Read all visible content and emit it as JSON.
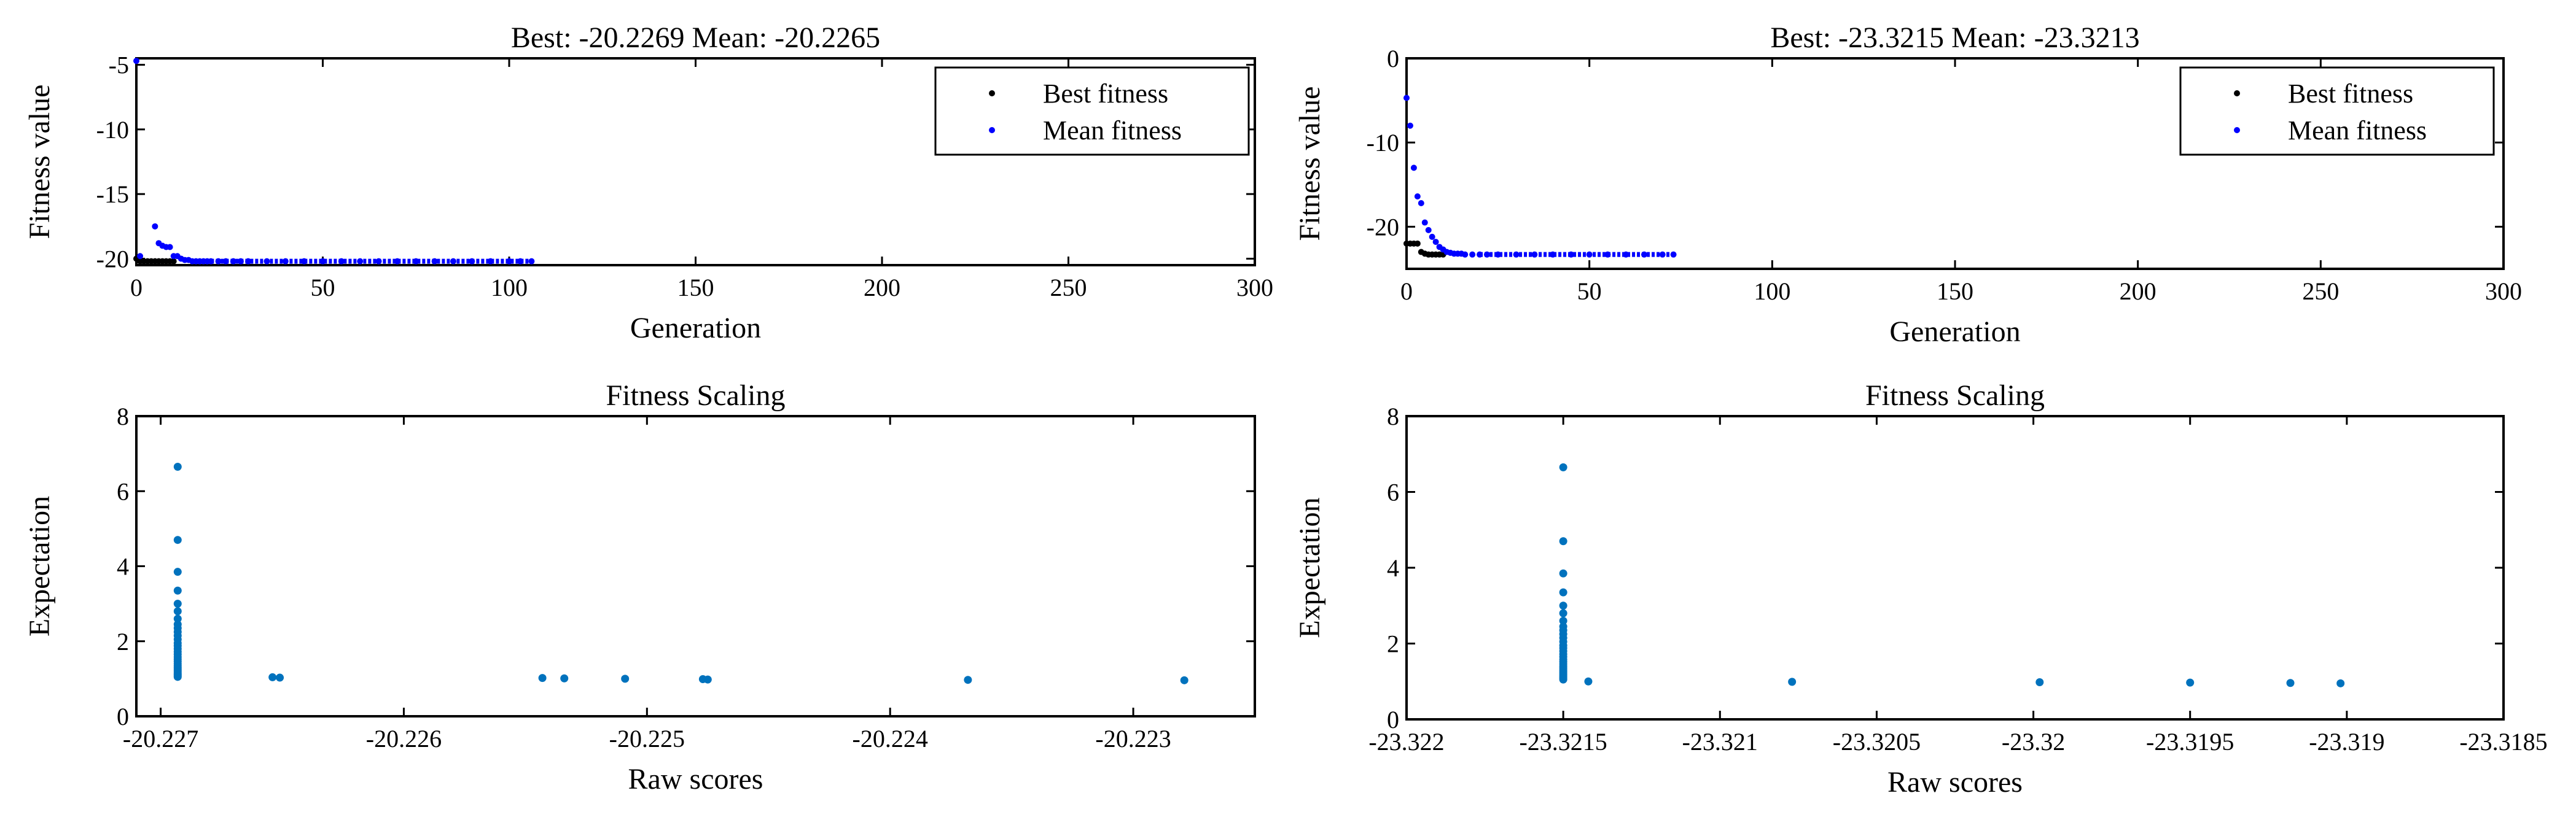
{
  "colors": {
    "best": "#000000",
    "mean": "#0000ff",
    "scatter": "#0072bd",
    "axes": "#000000"
  },
  "chart_data": [
    {
      "type": "scatter",
      "title": "Best: -20.2269 Mean: -20.2265",
      "xlabel": "Generation",
      "ylabel": "Fitness value",
      "xlim": [
        0,
        300
      ],
      "ylim": [
        -20.5,
        -4.5
      ],
      "xticks": [
        0,
        50,
        100,
        150,
        200,
        250,
        300
      ],
      "xtick_labels": [
        "0",
        "50",
        "100",
        "150",
        "200",
        "250",
        "300"
      ],
      "yticks": [
        -5,
        -10,
        -15,
        -20
      ],
      "ytick_labels": [
        "-5",
        "-10",
        "-15",
        "-20"
      ],
      "legend": {
        "entries": [
          "Best fitness",
          "Mean fitness"
        ],
        "location": "top-right"
      },
      "series": [
        {
          "name": "Best fitness",
          "x": [
            0,
            1,
            2,
            3,
            4,
            5,
            6,
            7,
            8,
            9,
            10
          ],
          "y": [
            -20.0,
            -20.2,
            -20.2,
            -20.2,
            -20.2,
            -20.2,
            -20.2,
            -20.2,
            -20.2,
            -20.2,
            -20.2
          ]
        },
        {
          "name": "Mean fitness",
          "x": [
            0,
            1,
            5,
            6,
            7,
            8,
            9,
            10,
            11,
            12,
            13,
            14,
            15,
            16,
            17,
            18,
            19,
            20,
            22,
            24,
            26,
            28,
            30,
            35,
            40,
            45,
            50,
            55,
            60,
            65,
            70,
            75,
            80,
            85,
            90,
            95,
            100,
            103,
            106
          ],
          "y": [
            -4.7,
            -19.8,
            -17.5,
            -18.8,
            -19.0,
            -19.1,
            -19.1,
            -19.8,
            -19.8,
            -20.0,
            -20.1,
            -20.1,
            -20.2,
            -20.2,
            -20.2,
            -20.2,
            -20.2,
            -20.2,
            -20.2,
            -20.2,
            -20.2,
            -20.2,
            -20.2,
            -20.2,
            -20.2,
            -20.2,
            -20.2,
            -20.2,
            -20.2,
            -20.2,
            -20.2,
            -20.2,
            -20.2,
            -20.2,
            -20.2,
            -20.2,
            -20.2,
            -20.2,
            -20.2
          ]
        }
      ]
    },
    {
      "type": "scatter",
      "title": "Best: -23.3215 Mean: -23.3213",
      "xlabel": "Generation",
      "ylabel": "Fitness value",
      "xlim": [
        0,
        300
      ],
      "ylim": [
        -25,
        0
      ],
      "xticks": [
        0,
        50,
        100,
        150,
        200,
        250,
        300
      ],
      "xtick_labels": [
        "0",
        "50",
        "100",
        "150",
        "200",
        "250",
        "300"
      ],
      "yticks": [
        0,
        -10,
        -20
      ],
      "ytick_labels": [
        "0",
        "-10",
        "-20"
      ],
      "legend": {
        "entries": [
          "Best fitness",
          "Mean fitness"
        ],
        "location": "top-right"
      },
      "series": [
        {
          "name": "Best fitness",
          "x": [
            0,
            1,
            2,
            3,
            4,
            5,
            6,
            7,
            8,
            9,
            10
          ],
          "y": [
            -22.0,
            -22.0,
            -22.0,
            -22.0,
            -23.0,
            -23.2,
            -23.3,
            -23.3,
            -23.3,
            -23.3,
            -23.3
          ]
        },
        {
          "name": "Mean fitness",
          "x": [
            0,
            1,
            2,
            3,
            4,
            5,
            6,
            7,
            8,
            9,
            10,
            11,
            12,
            13,
            14,
            15,
            16,
            18,
            20,
            22,
            25,
            30,
            35,
            40,
            45,
            50,
            55,
            60,
            65,
            70,
            73
          ],
          "y": [
            -4.7,
            -8.0,
            -13.0,
            -16.4,
            -17.2,
            -19.5,
            -20.4,
            -21.2,
            -21.8,
            -22.4,
            -22.7,
            -23.0,
            -23.1,
            -23.2,
            -23.2,
            -23.2,
            -23.3,
            -23.3,
            -23.3,
            -23.3,
            -23.3,
            -23.3,
            -23.3,
            -23.3,
            -23.3,
            -23.3,
            -23.3,
            -23.3,
            -23.3,
            -23.3,
            -23.3
          ]
        }
      ]
    },
    {
      "type": "scatter",
      "title": "Fitness Scaling",
      "xlabel": "Raw scores",
      "ylabel": "Expectation",
      "xlim": [
        -20.2271,
        -20.2225
      ],
      "ylim": [
        0,
        8
      ],
      "xticks": [
        -20.227,
        -20.226,
        -20.225,
        -20.224,
        -20.223
      ],
      "xtick_labels": [
        "-20.227",
        "-20.226",
        "-20.225",
        "-20.224",
        "-20.223"
      ],
      "yticks": [
        0,
        2,
        4,
        6,
        8
      ],
      "ytick_labels": [
        "0",
        "2",
        "4",
        "6",
        "8"
      ],
      "series": [
        {
          "name": "Expectation",
          "x": [
            -20.22693,
            -20.22693,
            -20.22693,
            -20.22693,
            -20.22693,
            -20.22693,
            -20.22693,
            -20.22693,
            -20.22693,
            -20.22693,
            -20.22693,
            -20.22693,
            -20.22693,
            -20.22693,
            -20.22693,
            -20.22693,
            -20.22693,
            -20.22693,
            -20.22693,
            -20.22693,
            -20.22693,
            -20.22693,
            -20.22693,
            -20.22693,
            -20.22693,
            -20.22693,
            -20.22693,
            -20.22693,
            -20.22693,
            -20.22693,
            -20.22654,
            -20.22651,
            -20.22543,
            -20.22534,
            -20.22509,
            -20.22477,
            -20.22475,
            -20.22368,
            -20.22279
          ],
          "y": [
            6.65,
            4.7,
            3.85,
            3.35,
            3.0,
            2.8,
            2.6,
            2.45,
            2.35,
            2.25,
            2.15,
            2.05,
            1.95,
            1.88,
            1.8,
            1.72,
            1.65,
            1.58,
            1.52,
            1.46,
            1.4,
            1.35,
            1.3,
            1.26,
            1.22,
            1.18,
            1.14,
            1.11,
            1.08,
            1.05,
            1.04,
            1.03,
            1.02,
            1.01,
            1.0,
            0.99,
            0.98,
            0.97,
            0.96
          ]
        }
      ]
    },
    {
      "type": "scatter",
      "title": "Fitness Scaling",
      "xlabel": "Raw scores",
      "ylabel": "Expectation",
      "xlim": [
        -23.322,
        -23.3185
      ],
      "ylim": [
        0,
        8
      ],
      "xticks": [
        -23.322,
        -23.3215,
        -23.321,
        -23.3205,
        -23.32,
        -23.3195,
        -23.319,
        -23.3185
      ],
      "xtick_labels": [
        "-23.322",
        "-23.3215",
        "-23.321",
        "-23.3205",
        "-23.32",
        "-23.3195",
        "-23.319",
        "-23.3185"
      ],
      "yticks": [
        0,
        2,
        4,
        6,
        8
      ],
      "ytick_labels": [
        "0",
        "2",
        "4",
        "6",
        "8"
      ],
      "series": [
        {
          "name": "Expectation",
          "x": [
            -23.3215,
            -23.3215,
            -23.3215,
            -23.3215,
            -23.3215,
            -23.3215,
            -23.3215,
            -23.3215,
            -23.3215,
            -23.3215,
            -23.3215,
            -23.3215,
            -23.3215,
            -23.3215,
            -23.3215,
            -23.3215,
            -23.3215,
            -23.3215,
            -23.3215,
            -23.3215,
            -23.3215,
            -23.3215,
            -23.3215,
            -23.3215,
            -23.3215,
            -23.3215,
            -23.3215,
            -23.3215,
            -23.3215,
            -23.3215,
            -23.32142,
            -23.32077,
            -23.31998,
            -23.3195,
            -23.31918,
            -23.31902
          ],
          "y": [
            6.65,
            4.7,
            3.85,
            3.35,
            3.0,
            2.8,
            2.6,
            2.45,
            2.35,
            2.25,
            2.15,
            2.05,
            1.95,
            1.88,
            1.8,
            1.72,
            1.65,
            1.58,
            1.52,
            1.46,
            1.4,
            1.35,
            1.3,
            1.26,
            1.22,
            1.18,
            1.14,
            1.11,
            1.08,
            1.05,
            1.0,
            0.99,
            0.98,
            0.97,
            0.96,
            0.95
          ]
        }
      ]
    }
  ]
}
